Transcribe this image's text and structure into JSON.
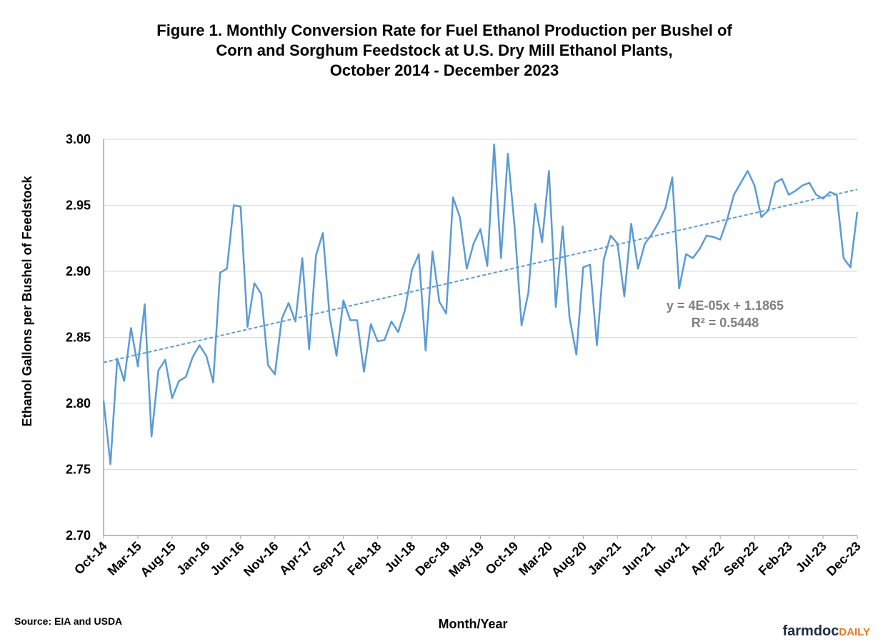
{
  "chart_data": {
    "type": "line",
    "title": [
      "Figure 1. Monthly Conversion Rate for Fuel Ethanol Production per Bushel of",
      "Corn and Sorghum Feedstock at U.S. Dry Mill Ethanol Plants,",
      "October 2014 - December 2023"
    ],
    "y_label": "Ethanol Gallons per Bushel of Feedstock",
    "x_label": "Month/Year",
    "source": "Source: EIA and USDA",
    "logo": [
      "farmdoc",
      "DAILY"
    ],
    "categories": [
      "Oct-14",
      null,
      null,
      null,
      null,
      "Mar-15",
      null,
      null,
      null,
      null,
      "Aug-15",
      null,
      null,
      null,
      null,
      "Jan-16",
      null,
      null,
      null,
      null,
      "Jun-16",
      null,
      null,
      null,
      null,
      "Nov-16",
      null,
      null,
      null,
      null,
      "Apr-17",
      null,
      null,
      null,
      null,
      "Sep-17",
      null,
      null,
      null,
      null,
      "Feb-18",
      null,
      null,
      null,
      null,
      "Jul-18",
      null,
      null,
      null,
      null,
      "Dec-18",
      null,
      null,
      null,
      null,
      "May-19",
      null,
      null,
      null,
      null,
      "Oct-19",
      null,
      null,
      null,
      null,
      "Mar-20",
      null,
      null,
      null,
      null,
      "Aug-20",
      null,
      null,
      null,
      null,
      "Jan-21",
      null,
      null,
      null,
      null,
      "Jun-21",
      null,
      null,
      null,
      null,
      "Nov-21",
      null,
      null,
      null,
      null,
      "Apr-22",
      null,
      null,
      null,
      null,
      "Sep-22",
      null,
      null,
      null,
      null,
      "Feb-23",
      null,
      null,
      null,
      null,
      "Jul-23",
      null,
      null,
      null,
      null,
      "Dec-23"
    ],
    "series": [
      {
        "color": "#5b9bd5",
        "values": [
          2.802,
          2.754,
          2.834,
          2.817,
          2.857,
          2.828,
          2.875,
          2.775,
          2.825,
          2.833,
          2.804,
          2.817,
          2.82,
          2.835,
          2.844,
          2.836,
          2.816,
          2.899,
          2.902,
          2.95,
          2.949,
          2.858,
          2.891,
          2.883,
          2.829,
          2.822,
          2.864,
          2.876,
          2.862,
          2.91,
          2.841,
          2.912,
          2.929,
          2.865,
          2.836,
          2.878,
          2.863,
          2.863,
          2.824,
          2.86,
          2.847,
          2.848,
          2.862,
          2.854,
          2.871,
          2.901,
          2.913,
          2.84,
          2.915,
          2.877,
          2.868,
          2.956,
          2.941,
          2.902,
          2.921,
          2.932,
          2.904,
          2.996,
          2.91,
          2.989,
          2.933,
          2.859,
          2.884,
          2.951,
          2.922,
          2.976,
          2.873,
          2.934,
          2.865,
          2.837,
          2.903,
          2.905,
          2.844,
          2.909,
          2.927,
          2.921,
          2.881,
          2.936,
          2.902,
          2.921,
          2.928,
          2.937,
          2.948,
          2.971,
          2.887,
          2.913,
          2.91,
          2.917,
          2.927,
          2.926,
          2.924,
          2.939,
          2.958,
          2.967,
          2.976,
          2.965,
          2.941,
          2.946,
          2.967,
          2.97,
          2.958,
          2.961,
          2.965,
          2.967,
          2.958,
          2.955,
          2.96,
          2.958,
          2.91,
          2.903,
          2.945
        ]
      }
    ],
    "trendline": {
      "start": 2.831,
      "end": 2.962,
      "color": "#5b9bd5",
      "equation": "y = 4E-05x + 1.1865",
      "r_squared": "R² = 0.5448"
    },
    "ylim": [
      2.7,
      3.0
    ],
    "yticks": [
      {
        "value": 2.7,
        "label": "2.70"
      },
      2.75,
      {
        "value": 2.8,
        "label": "2.80"
      },
      2.85,
      {
        "value": 2.9,
        "label": "2.90"
      },
      2.95,
      {
        "value": 3.0,
        "label": "3.00"
      }
    ],
    "grid": true
  }
}
